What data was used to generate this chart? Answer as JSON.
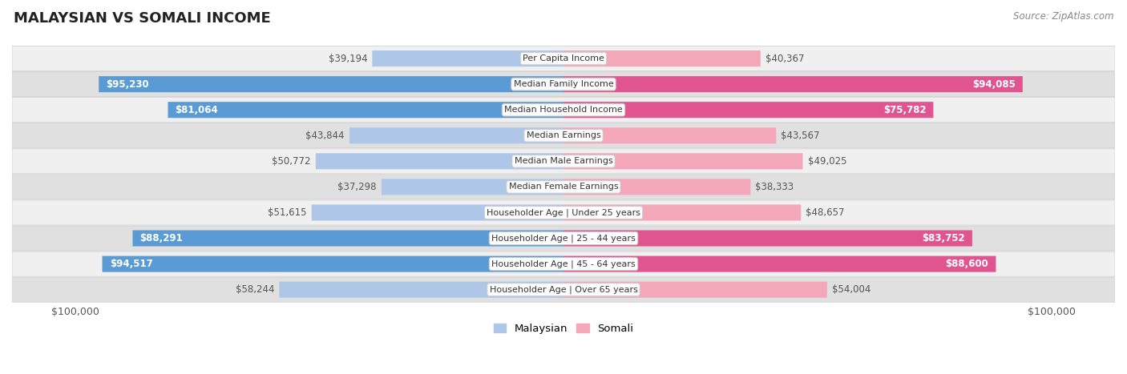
{
  "title": "MALAYSIAN VS SOMALI INCOME",
  "source": "Source: ZipAtlas.com",
  "categories": [
    "Per Capita Income",
    "Median Family Income",
    "Median Household Income",
    "Median Earnings",
    "Median Male Earnings",
    "Median Female Earnings",
    "Householder Age | Under 25 years",
    "Householder Age | 25 - 44 years",
    "Householder Age | 45 - 64 years",
    "Householder Age | Over 65 years"
  ],
  "malaysian_values": [
    39194,
    95230,
    81064,
    43844,
    50772,
    37298,
    51615,
    88291,
    94517,
    58244
  ],
  "somali_values": [
    40367,
    94085,
    75782,
    43567,
    49025,
    38333,
    48657,
    83752,
    88600,
    54004
  ],
  "malaysian_light": "#aec6e8",
  "somali_light": "#f4a7b9",
  "malaysian_dark": "#5b9bd5",
  "somali_dark": "#e05590",
  "row_bg_odd": "#f0f0f0",
  "row_bg_even": "#e0e0e0",
  "row_border": "#cccccc",
  "max_value": 100000,
  "large_threshold": 75000,
  "title_fontsize": 13,
  "label_fontsize": 8.5,
  "category_fontsize": 8.0,
  "axis_label": "$100,000",
  "legend_labels": [
    "Malaysian",
    "Somali"
  ],
  "legend_mal_color": "#aec6e8",
  "legend_som_color": "#f4a7b9"
}
